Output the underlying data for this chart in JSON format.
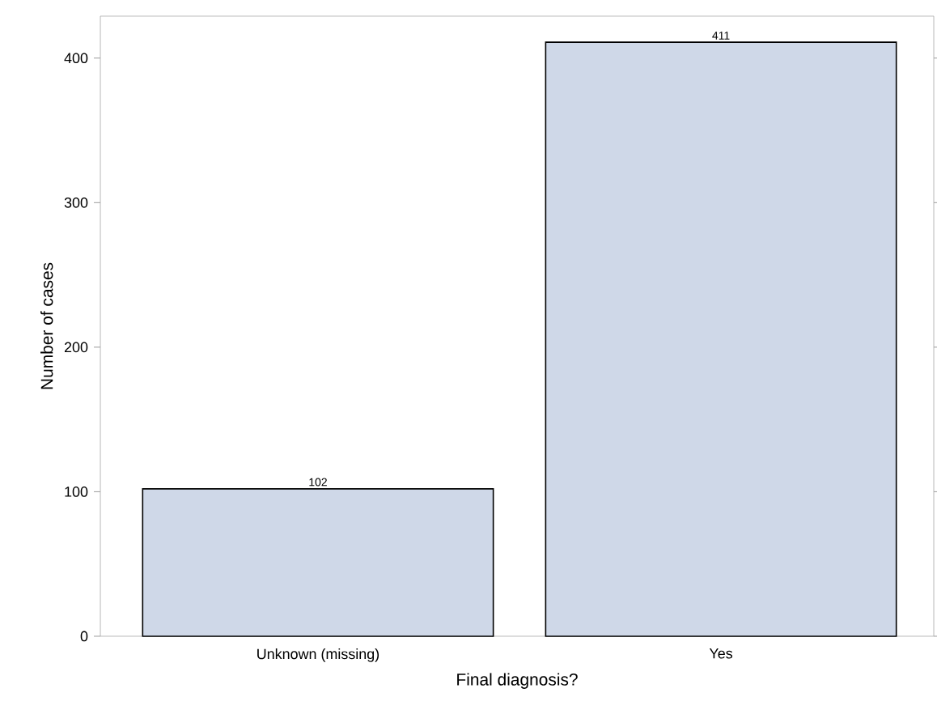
{
  "chart_data": {
    "type": "bar",
    "xlabel": "Final diagnosis?",
    "ylabel": "Number of cases",
    "categories": [
      "Unknown (missing)",
      "Yes"
    ],
    "values": [
      102,
      411
    ],
    "color": "#cfd8e8",
    "ylim": [
      0,
      429
    ],
    "yticks": [
      0,
      100,
      200,
      300,
      400
    ],
    "data_labels": true
  }
}
